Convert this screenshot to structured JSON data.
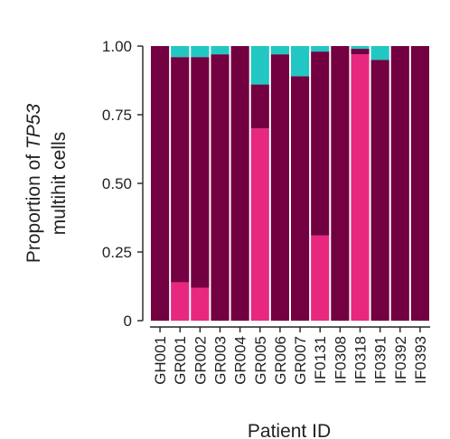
{
  "chart_data": {
    "type": "bar",
    "stacked": true,
    "xlabel": "Patient ID",
    "ylabel_prefix": "Proportion of ",
    "ylabel_gene": "TP53",
    "ylabel_line2": "multihit cells",
    "ylim": [
      0,
      1
    ],
    "yticks": [
      0,
      0.25,
      0.5,
      0.75,
      1.0
    ],
    "ytick_labels": [
      "0",
      "0.25",
      "0.50",
      "0.75",
      "1.00"
    ],
    "grid": false,
    "legend": "none",
    "categories": [
      "GH001",
      "GR001",
      "GR002",
      "GR003",
      "GR004",
      "GR005",
      "GR006",
      "GR007",
      "IF0131",
      "IF0308",
      "IF0318",
      "IF0391",
      "IF0392",
      "IF0393"
    ],
    "series": [
      {
        "color": "#e8287f",
        "values": [
          0,
          0.14,
          0.12,
          0,
          0,
          0.7,
          0,
          0,
          0.31,
          0,
          0.97,
          0,
          0,
          0
        ]
      },
      {
        "color": "#730040",
        "values": [
          1.0,
          0.82,
          0.84,
          0.97,
          1.0,
          0.16,
          0.97,
          0.89,
          0.67,
          1.0,
          0.02,
          0.95,
          1.0,
          1.0
        ]
      },
      {
        "color": "#22c7c4",
        "values": [
          0,
          0.04,
          0.04,
          0.03,
          0,
          0.14,
          0.03,
          0.11,
          0.02,
          0,
          0.01,
          0.05,
          0,
          0
        ]
      }
    ]
  }
}
